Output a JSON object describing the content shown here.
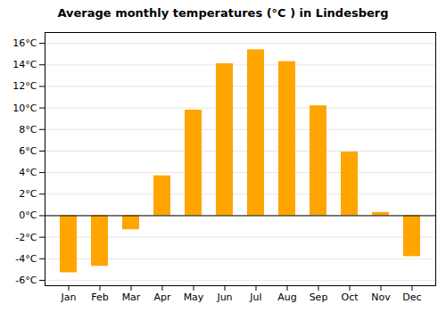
{
  "chart_data": {
    "type": "bar",
    "title": "Average monthly temperatures (°C ) in Lindesberg",
    "categories": [
      "Jan",
      "Feb",
      "Mar",
      "Apr",
      "May",
      "Jun",
      "Jul",
      "Aug",
      "Sep",
      "Oct",
      "Nov",
      "Dec"
    ],
    "values": [
      -5.3,
      -4.7,
      -1.3,
      3.7,
      9.8,
      14.1,
      15.4,
      14.3,
      10.2,
      5.9,
      0.3,
      -3.8
    ],
    "color": "#FFA500",
    "ylim": [
      -6.5,
      17
    ],
    "yticks": [
      {
        "value": -6,
        "label": "-6°C"
      },
      {
        "value": -4,
        "label": "-4°C"
      },
      {
        "value": -2,
        "label": "-2°C"
      },
      {
        "value": 0,
        "label": "0°C"
      },
      {
        "value": 2,
        "label": "2°C"
      },
      {
        "value": 4,
        "label": "4°C"
      },
      {
        "value": 6,
        "label": "6°C"
      },
      {
        "value": 8,
        "label": "8°C"
      },
      {
        "value": 10,
        "label": "10°C"
      },
      {
        "value": 12,
        "label": "12°C"
      },
      {
        "value": 14,
        "label": "14°C"
      },
      {
        "value": 16,
        "label": "16°C"
      }
    ],
    "grid": true
  }
}
